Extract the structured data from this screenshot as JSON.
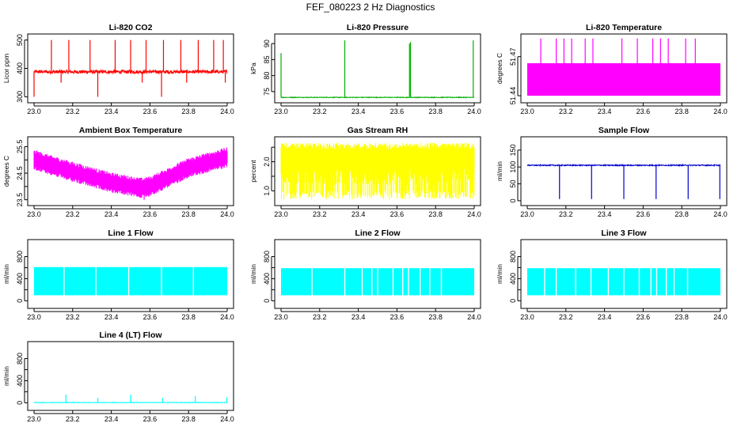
{
  "page_title": "FEF_080223  2 Hz Diagnostics",
  "chart_data": [
    {
      "type": "line",
      "title": "Li-820 CO2",
      "ylabel": "Licor ppm",
      "color": "#ff0000",
      "xlim": [
        23.0,
        24.0
      ],
      "ylim": [
        290,
        510
      ],
      "xticks": [
        23.0,
        23.2,
        23.4,
        23.6,
        23.8,
        24.0
      ],
      "xtick_labels": [
        "23.0",
        "23.2",
        "23.4",
        "23.6",
        "23.8",
        "24.0"
      ],
      "yticks": [
        300,
        400,
        500
      ],
      "ytick_labels": [
        "300",
        "400",
        "500"
      ],
      "baseline": 388,
      "pattern": "noise",
      "noise": 6,
      "spikes_up": [
        [
          23.09,
          500
        ],
        [
          23.18,
          500
        ],
        [
          23.29,
          500
        ],
        [
          23.42,
          500
        ],
        [
          23.5,
          500
        ],
        [
          23.58,
          500
        ],
        [
          23.67,
          500
        ],
        [
          23.76,
          500
        ],
        [
          23.85,
          500
        ],
        [
          23.93,
          500
        ],
        [
          23.98,
          500
        ]
      ],
      "spikes_down": [
        [
          23.0,
          300
        ],
        [
          23.14,
          350
        ],
        [
          23.33,
          300
        ],
        [
          23.56,
          350
        ],
        [
          23.66,
          300
        ],
        [
          23.79,
          350
        ],
        [
          23.99,
          350
        ]
      ]
    },
    {
      "type": "line",
      "title": "Li-820 Pressure",
      "ylabel": "kPa",
      "color": "#00b000",
      "xlim": [
        23.0,
        24.0
      ],
      "ylim": [
        72.5,
        92
      ],
      "xticks": [
        23.0,
        23.2,
        23.4,
        23.6,
        23.8,
        24.0
      ],
      "xtick_labels": [
        "23.0",
        "23.2",
        "23.4",
        "23.6",
        "23.8",
        "24.0"
      ],
      "yticks": [
        75,
        80,
        85,
        90
      ],
      "ytick_labels": [
        "75",
        "80",
        "85",
        "90"
      ],
      "baseline": 73.2,
      "pattern": "noise",
      "noise": 0.1,
      "spikes_up": [
        [
          23.0,
          87
        ],
        [
          23.33,
          91
        ],
        [
          23.665,
          90
        ],
        [
          23.67,
          90.5
        ],
        [
          23.995,
          91
        ]
      ],
      "spikes_down": []
    },
    {
      "type": "line",
      "title": "Li-820 Temperature",
      "ylabel": "degrees C",
      "color": "#ff00ff",
      "xlim": [
        23.0,
        24.0
      ],
      "ylim": [
        51.437,
        51.485
      ],
      "xticks": [
        23.0,
        23.2,
        23.4,
        23.6,
        23.8,
        24.0
      ],
      "xtick_labels": [
        "23.0",
        "23.2",
        "23.4",
        "23.6",
        "23.8",
        "24.0"
      ],
      "yticks": [
        51.44,
        51.47
      ],
      "ytick_labels": [
        "51.44",
        "51.47"
      ],
      "band_low": 51.44,
      "band_high": 51.465,
      "pattern": "band",
      "spikes_up": [
        [
          23.07,
          51.484
        ],
        [
          23.15,
          51.484
        ],
        [
          23.19,
          51.484
        ],
        [
          23.23,
          51.484
        ],
        [
          23.3,
          51.484
        ],
        [
          23.34,
          51.484
        ],
        [
          23.49,
          51.484
        ],
        [
          23.57,
          51.484
        ],
        [
          23.65,
          51.484
        ],
        [
          23.69,
          51.484
        ],
        [
          23.73,
          51.484
        ],
        [
          23.82,
          51.484
        ],
        [
          23.87,
          51.484
        ]
      ],
      "spikes_down": []
    },
    {
      "type": "line",
      "title": "Ambient Box Temperature",
      "ylabel": "degrees C",
      "color": "#ff00ff",
      "xlim": [
        23.0,
        24.0
      ],
      "ylim": [
        23.4,
        25.75
      ],
      "xticks": [
        23.0,
        23.2,
        23.4,
        23.6,
        23.8,
        24.0
      ],
      "xtick_labels": [
        "23.0",
        "23.2",
        "23.4",
        "23.6",
        "23.8",
        "24.0"
      ],
      "yticks": [
        23.5,
        24.0,
        24.5,
        25.0,
        25.5
      ],
      "ytick_labels": [
        "23.5",
        "24.5",
        "25.5"
      ],
      "ytick_label_values": [
        23.5,
        24.5,
        25.5
      ],
      "pattern": "vband",
      "curve": [
        [
          23.0,
          25.0
        ],
        [
          23.2,
          24.55
        ],
        [
          23.4,
          24.15
        ],
        [
          23.55,
          23.95
        ],
        [
          23.6,
          24.0
        ],
        [
          23.8,
          24.7
        ],
        [
          24.0,
          25.1
        ]
      ],
      "band_halfwidth": 0.38,
      "spikes_up": [],
      "spikes_down": [
        [
          23.57,
          23.5
        ]
      ]
    },
    {
      "type": "line",
      "title": "Gas Stream RH",
      "ylabel": "percent",
      "color": "#ffff00",
      "xlim": [
        23.0,
        24.0
      ],
      "ylim": [
        0.6,
        2.75
      ],
      "xticks": [
        23.0,
        23.2,
        23.4,
        23.6,
        23.8,
        24.0
      ],
      "xtick_labels": [
        "23.0",
        "23.2",
        "23.4",
        "23.6",
        "23.8",
        "24.0"
      ],
      "yticks": [
        1.0,
        1.5,
        2.0,
        2.5
      ],
      "ytick_labels": [
        "1.0",
        "2.0"
      ],
      "ytick_label_values": [
        1.0,
        2.0
      ],
      "pattern": "rh",
      "band_low": 0.7,
      "band_high": 2.65,
      "spikes_up": [],
      "spikes_down": []
    },
    {
      "type": "line",
      "title": "Sample Flow",
      "ylabel": "ml/min",
      "color": "#0000cc",
      "xlim": [
        23.0,
        24.0
      ],
      "ylim": [
        -5,
        180
      ],
      "xticks": [
        23.0,
        23.2,
        23.4,
        23.6,
        23.8,
        24.0
      ],
      "xtick_labels": [
        "23.0",
        "23.2",
        "23.4",
        "23.6",
        "23.8",
        "24.0"
      ],
      "yticks": [
        0,
        50,
        100,
        150
      ],
      "ytick_labels": [
        "0",
        "50",
        "100",
        "150"
      ],
      "baseline": 105,
      "pattern": "noise",
      "noise": 1.5,
      "spikes_up": [],
      "spikes_down": [
        [
          23.167,
          5
        ],
        [
          23.333,
          5
        ],
        [
          23.5,
          5
        ],
        [
          23.667,
          5
        ],
        [
          23.833,
          5
        ],
        [
          23.997,
          5
        ]
      ]
    },
    {
      "type": "line",
      "title": "Line 1 Flow",
      "ylabel": "ml/min",
      "color": "#00ffff",
      "xlim": [
        23.0,
        24.0
      ],
      "ylim": [
        -80,
        1050
      ],
      "xticks": [
        23.0,
        23.2,
        23.4,
        23.6,
        23.8,
        24.0
      ],
      "xtick_labels": [
        "23.0",
        "23.2",
        "23.4",
        "23.6",
        "23.8",
        "24.0"
      ],
      "yticks": [
        0,
        200,
        400,
        600,
        800
      ],
      "ytick_labels": [
        "0",
        "400",
        "800"
      ],
      "ytick_label_values": [
        0,
        400,
        800
      ],
      "band_low": 100,
      "band_high": 610,
      "pattern": "band",
      "gaps": [
        23.155,
        23.32,
        23.49,
        23.66,
        23.825
      ],
      "spikes_up": [],
      "spikes_down": []
    },
    {
      "type": "line",
      "title": "Line 2 Flow",
      "ylabel": "ml/min",
      "color": "#00ffff",
      "xlim": [
        23.0,
        24.0
      ],
      "ylim": [
        -80,
        1050
      ],
      "xticks": [
        23.0,
        23.2,
        23.4,
        23.6,
        23.8,
        24.0
      ],
      "xtick_labels": [
        "23.0",
        "23.2",
        "23.4",
        "23.6",
        "23.8",
        "24.0"
      ],
      "yticks": [
        0,
        200,
        400,
        600,
        800
      ],
      "ytick_labels": [
        "0",
        "400",
        "800"
      ],
      "ytick_label_values": [
        0,
        400,
        800
      ],
      "band_low": 100,
      "band_high": 590,
      "pattern": "band",
      "gaps": [
        23.16,
        23.33,
        23.42,
        23.47,
        23.5,
        23.58,
        23.63,
        23.66,
        23.72,
        23.77,
        23.83
      ],
      "spikes_up": [],
      "spikes_down": []
    },
    {
      "type": "line",
      "title": "Line 3 Flow",
      "ylabel": "ml/min",
      "color": "#00ffff",
      "xlim": [
        23.0,
        24.0
      ],
      "ylim": [
        -80,
        1050
      ],
      "xticks": [
        23.0,
        23.2,
        23.4,
        23.6,
        23.8,
        24.0
      ],
      "xtick_labels": [
        "23.0",
        "23.2",
        "23.4",
        "23.6",
        "23.8",
        "24.0"
      ],
      "yticks": [
        0,
        200,
        400,
        600,
        800
      ],
      "ytick_labels": [
        "0",
        "400",
        "800"
      ],
      "ytick_label_values": [
        0,
        400,
        800
      ],
      "band_low": 100,
      "band_high": 590,
      "pattern": "band",
      "gaps": [
        23.09,
        23.15,
        23.25,
        23.33,
        23.42,
        23.5,
        23.58,
        23.64,
        23.67,
        23.72,
        23.76,
        23.83
      ],
      "spikes_up": [],
      "spikes_down": []
    },
    {
      "type": "line",
      "title": "Line 4 (LT) Flow",
      "ylabel": "ml/min",
      "color": "#00ffff",
      "xlim": [
        23.0,
        24.0
      ],
      "ylim": [
        -80,
        1050
      ],
      "xticks": [
        23.0,
        23.2,
        23.4,
        23.6,
        23.8,
        24.0
      ],
      "xtick_labels": [
        "23.0",
        "23.2",
        "23.4",
        "23.6",
        "23.8",
        "24.0"
      ],
      "yticks": [
        0,
        200,
        400,
        600,
        800
      ],
      "ytick_labels": [
        "0",
        "400",
        "800"
      ],
      "ytick_label_values": [
        0,
        400,
        800
      ],
      "baseline": 5,
      "pattern": "noise",
      "noise": 4,
      "spikes_up": [
        [
          23.165,
          150
        ],
        [
          23.33,
          90
        ],
        [
          23.5,
          150
        ],
        [
          23.665,
          90
        ],
        [
          23.835,
          120
        ],
        [
          23.998,
          100
        ]
      ],
      "spikes_down": []
    }
  ]
}
